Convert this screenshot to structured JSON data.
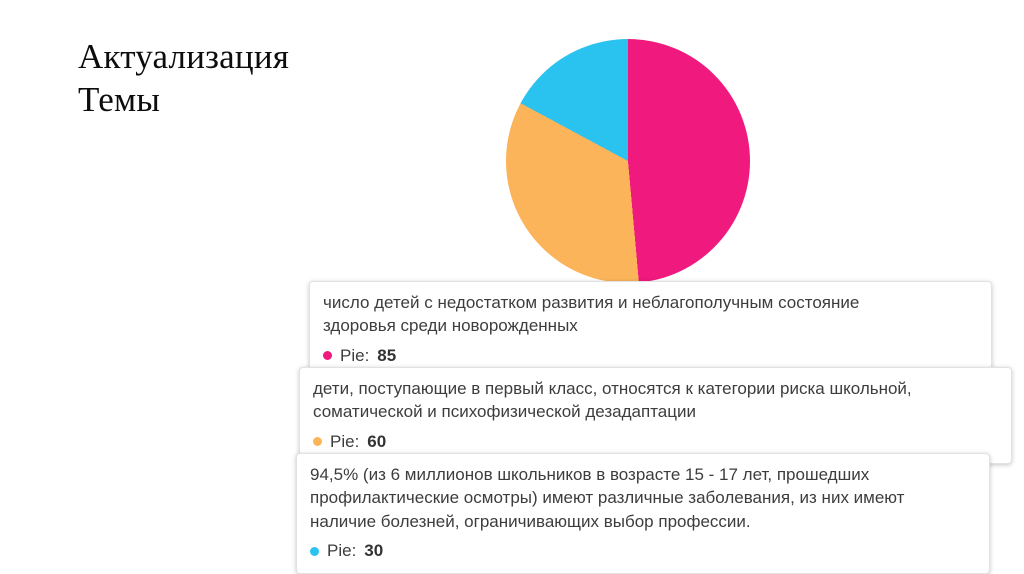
{
  "slide": {
    "title_line1": "Актуализация",
    "title_line2": "Темы"
  },
  "chart_data": {
    "type": "pie",
    "series_label": "Pie:",
    "legend_position": "below-as-tooltips",
    "slices": [
      {
        "value": 85,
        "color": "#F0197E",
        "lines": [
          "число детей с недостатком развития и неблагополучным состояние",
          "здоровья среди новорожденных"
        ]
      },
      {
        "value": 60,
        "color": "#FBB45A",
        "lines": [
          "дети, поступающие в первый класс, относятся к категории риска школьной,",
          "соматической и психофизической дезадаптации"
        ]
      },
      {
        "value": 30,
        "color": "#2AC3EF",
        "lines": [
          "94,5% (из 6 миллионов школьников в возрасте 15 - 17 лет, прошедших",
          "профилактические осмотры) имеют различные заболевания, из них имеют",
          "наличие болезней, ограничивающих выбор профессии."
        ]
      }
    ]
  }
}
